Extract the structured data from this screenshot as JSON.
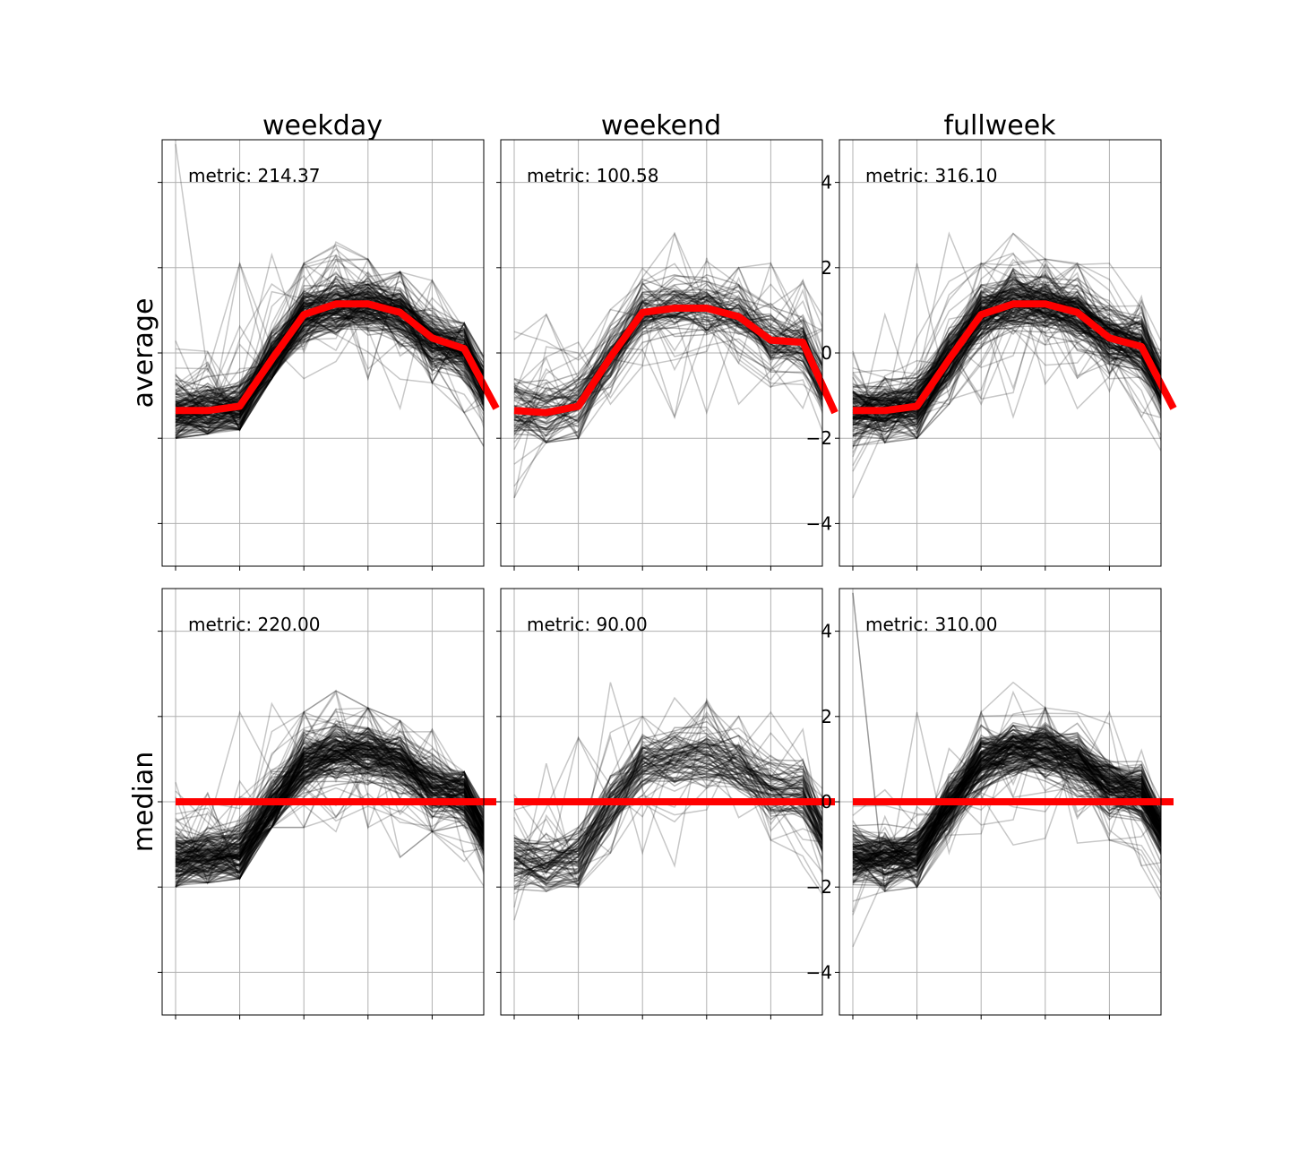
{
  "figure": {
    "columns": [
      "weekday",
      "weekend",
      "fullweek"
    ],
    "rows": [
      "average",
      "median"
    ]
  },
  "chart_data": [
    {
      "type": "line",
      "panel": "average-weekday",
      "row": "average",
      "column": "weekday",
      "title": "weekday",
      "ylabel": "average",
      "annotation": "metric: 214.37",
      "ylim": [
        -5,
        5
      ],
      "yticks": [
        -4,
        -2,
        0,
        2,
        4
      ],
      "x": [
        0,
        1,
        2,
        3,
        4,
        5,
        6,
        7,
        8,
        9,
        10
      ],
      "y_tick_labels_shown": false,
      "grid": true,
      "background_series": {
        "count_approx": 250,
        "color": "#000000",
        "y_range_per_x": [
          [
            -2.0,
            4.9
          ],
          [
            -1.9,
            0.2
          ],
          [
            -1.8,
            2.1
          ],
          [
            -0.6,
            2.3
          ],
          [
            -0.6,
            2.1
          ],
          [
            -0.9,
            2.6
          ],
          [
            -0.6,
            2.2
          ],
          [
            -1.3,
            1.9
          ],
          [
            -0.7,
            1.7
          ],
          [
            -1.4,
            0.7
          ],
          [
            -2.7,
            -0.6
          ]
        ]
      },
      "series": [
        {
          "name": "",
          "color": "#ff0000",
          "y": [
            -1.35,
            -1.35,
            -1.25,
            -0.15,
            0.9,
            1.15,
            1.15,
            0.95,
            0.35,
            0.1,
            -1.3
          ]
        }
      ]
    },
    {
      "type": "line",
      "panel": "average-weekend",
      "row": "average",
      "column": "weekend",
      "title": "weekend",
      "annotation": "metric: 100.58",
      "ylim": [
        -5,
        5
      ],
      "yticks": [
        -4,
        -2,
        0,
        2,
        4
      ],
      "x": [
        0,
        1,
        2,
        3,
        4,
        5,
        6,
        7,
        8,
        9,
        10
      ],
      "y_tick_labels_shown": false,
      "grid": true,
      "background_series": {
        "count_approx": 80,
        "color": "#000000",
        "y_range_per_x": [
          [
            -3.4,
            0.5
          ],
          [
            -2.1,
            0.9
          ],
          [
            -2.0,
            1.5
          ],
          [
            -1.2,
            2.8
          ],
          [
            -1.2,
            2.0
          ],
          [
            -1.5,
            2.8
          ],
          [
            -1.4,
            2.4
          ],
          [
            -1.2,
            2.0
          ],
          [
            -0.9,
            2.1
          ],
          [
            -1.5,
            1.7
          ],
          [
            -2.6,
            0.7
          ]
        ]
      },
      "series": [
        {
          "name": "",
          "color": "#ff0000",
          "y": [
            -1.35,
            -1.4,
            -1.25,
            -0.1,
            0.95,
            1.05,
            1.05,
            0.85,
            0.3,
            0.25,
            -1.4
          ]
        }
      ]
    },
    {
      "type": "line",
      "panel": "average-fullweek",
      "row": "average",
      "column": "fullweek",
      "title": "fullweek",
      "annotation": "metric: 316.10",
      "ylim": [
        -5,
        5
      ],
      "yticks": [
        -4,
        -2,
        0,
        2,
        4
      ],
      "x": [
        0,
        1,
        2,
        3,
        4,
        5,
        6,
        7,
        8,
        9,
        10
      ],
      "y_tick_labels_shown": true,
      "grid": true,
      "background_series": {
        "count_approx": 330,
        "color": "#000000",
        "y_range_per_x": [
          [
            -3.4,
            4.9
          ],
          [
            -2.1,
            0.9
          ],
          [
            -2.0,
            2.1
          ],
          [
            -1.2,
            2.8
          ],
          [
            -1.2,
            2.1
          ],
          [
            -1.5,
            2.8
          ],
          [
            -1.4,
            2.2
          ],
          [
            -1.3,
            2.1
          ],
          [
            -0.9,
            2.1
          ],
          [
            -1.5,
            1.7
          ],
          [
            -2.8,
            0.7
          ]
        ]
      },
      "series": [
        {
          "name": "",
          "color": "#ff0000",
          "y": [
            -1.35,
            -1.35,
            -1.25,
            -0.15,
            0.9,
            1.15,
            1.15,
            0.95,
            0.35,
            0.15,
            -1.3
          ]
        }
      ]
    },
    {
      "type": "line",
      "panel": "median-weekday",
      "row": "median",
      "column": "weekday",
      "ylabel": "median",
      "annotation": "metric: 220.00",
      "ylim": [
        -5,
        5
      ],
      "yticks": [
        -4,
        -2,
        0,
        2,
        4
      ],
      "x": [
        0,
        1,
        2,
        3,
        4,
        5,
        6,
        7,
        8,
        9,
        10
      ],
      "y_tick_labels_shown": false,
      "grid": true,
      "background_series": {
        "count_approx": 250,
        "color": "#000000",
        "y_range_per_x": [
          [
            -2.0,
            4.9
          ],
          [
            -1.9,
            0.2
          ],
          [
            -1.8,
            2.1
          ],
          [
            -0.6,
            2.3
          ],
          [
            -0.6,
            2.1
          ],
          [
            -0.9,
            2.6
          ],
          [
            -0.6,
            2.2
          ],
          [
            -1.3,
            1.9
          ],
          [
            -0.7,
            1.7
          ],
          [
            -1.4,
            0.7
          ],
          [
            -2.7,
            -0.6
          ]
        ]
      },
      "series": [
        {
          "name": "",
          "color": "#ff0000",
          "y": [
            0,
            0,
            0,
            0,
            0,
            0,
            0,
            0,
            0,
            0,
            0
          ]
        }
      ]
    },
    {
      "type": "line",
      "panel": "median-weekend",
      "row": "median",
      "column": "weekend",
      "annotation": "metric: 90.00",
      "ylim": [
        -5,
        5
      ],
      "yticks": [
        -4,
        -2,
        0,
        2,
        4
      ],
      "x": [
        0,
        1,
        2,
        3,
        4,
        5,
        6,
        7,
        8,
        9,
        10
      ],
      "y_tick_labels_shown": false,
      "grid": true,
      "background_series": {
        "count_approx": 80,
        "color": "#000000",
        "y_range_per_x": [
          [
            -3.4,
            0.5
          ],
          [
            -2.1,
            0.9
          ],
          [
            -2.0,
            1.5
          ],
          [
            -1.2,
            2.8
          ],
          [
            -1.2,
            2.0
          ],
          [
            -1.5,
            2.8
          ],
          [
            -1.4,
            2.4
          ],
          [
            -1.2,
            2.0
          ],
          [
            -0.9,
            2.1
          ],
          [
            -1.5,
            1.7
          ],
          [
            -2.6,
            0.7
          ]
        ]
      },
      "series": [
        {
          "name": "",
          "color": "#ff0000",
          "y": [
            0,
            0,
            0,
            0,
            0,
            0,
            0,
            0,
            0,
            0,
            0
          ]
        }
      ]
    },
    {
      "type": "line",
      "panel": "median-fullweek",
      "row": "median",
      "column": "fullweek",
      "annotation": "metric: 310.00",
      "ylim": [
        -5,
        5
      ],
      "yticks": [
        -4,
        -2,
        0,
        2,
        4
      ],
      "x": [
        0,
        1,
        2,
        3,
        4,
        5,
        6,
        7,
        8,
        9,
        10
      ],
      "y_tick_labels_shown": true,
      "grid": true,
      "background_series": {
        "count_approx": 330,
        "color": "#000000",
        "y_range_per_x": [
          [
            -3.4,
            4.9
          ],
          [
            -2.1,
            0.9
          ],
          [
            -2.0,
            2.1
          ],
          [
            -1.2,
            2.8
          ],
          [
            -1.2,
            2.1
          ],
          [
            -1.5,
            2.8
          ],
          [
            -1.4,
            2.2
          ],
          [
            -1.3,
            2.1
          ],
          [
            -0.9,
            2.1
          ],
          [
            -1.5,
            1.7
          ],
          [
            -2.8,
            0.7
          ]
        ]
      },
      "series": [
        {
          "name": "",
          "color": "#ff0000",
          "y": [
            0,
            0,
            0,
            0,
            0,
            0,
            0,
            0,
            0,
            0,
            0
          ]
        }
      ]
    }
  ]
}
